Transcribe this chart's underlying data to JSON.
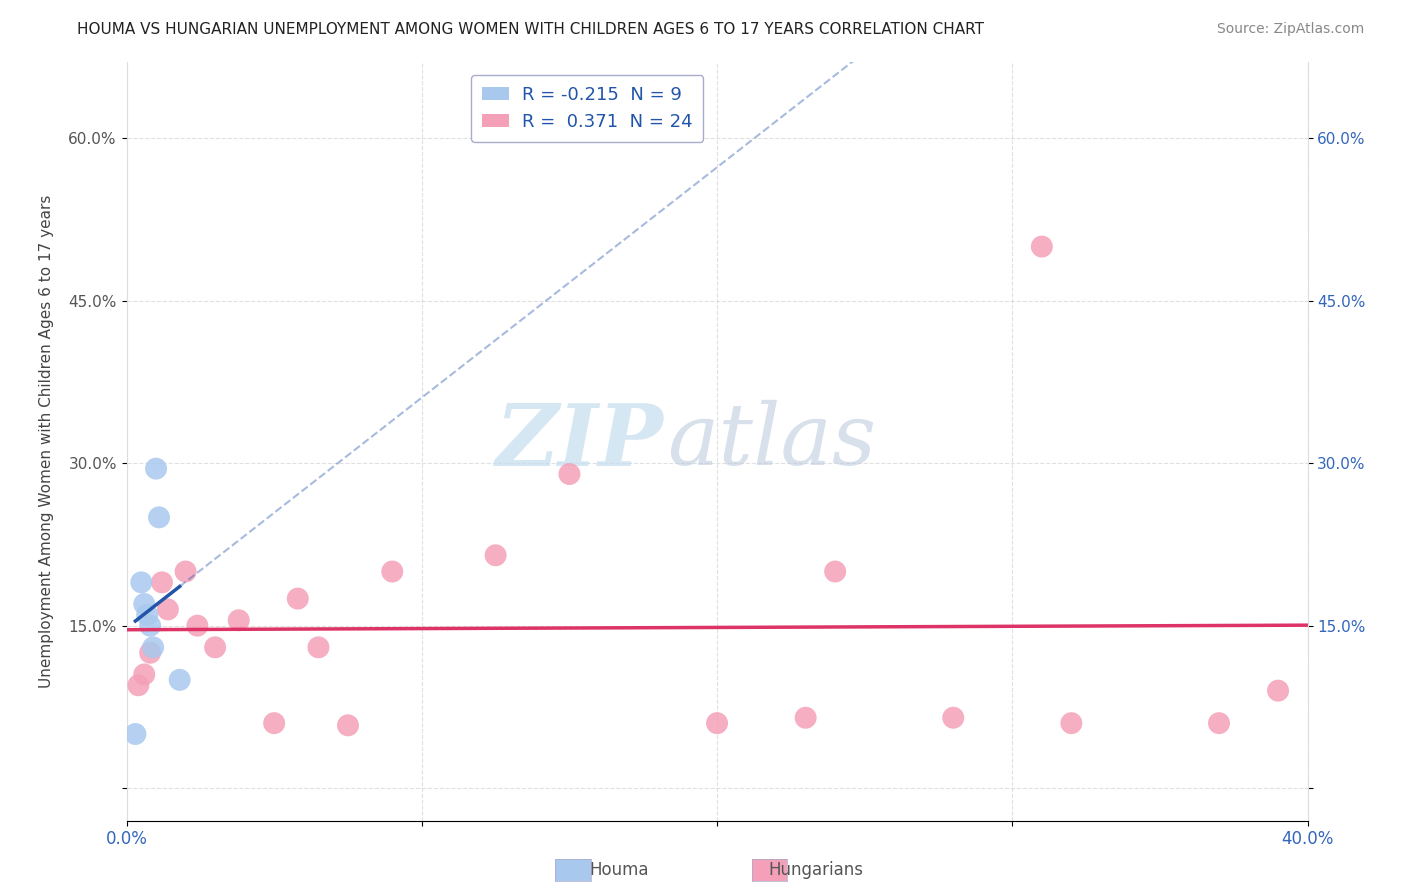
{
  "title": "HOUMA VS HUNGARIAN UNEMPLOYMENT AMONG WOMEN WITH CHILDREN AGES 6 TO 17 YEARS CORRELATION CHART",
  "source": "Source: ZipAtlas.com",
  "ylabel": "Unemployment Among Women with Children Ages 6 to 17 years",
  "xlim": [
    0.0,
    0.4
  ],
  "ylim": [
    -0.03,
    0.67
  ],
  "yticks": [
    0.0,
    0.15,
    0.3,
    0.45,
    0.6
  ],
  "ytick_labels_left": [
    "",
    "15.0%",
    "30.0%",
    "45.0%",
    "60.0%"
  ],
  "ytick_labels_right": [
    "",
    "15.0%",
    "30.0%",
    "45.0%",
    "60.0%"
  ],
  "houma_R": -0.215,
  "houma_N": 9,
  "hungarian_R": 0.371,
  "hungarian_N": 24,
  "houma_color": "#a8c8ee",
  "hungarian_color": "#f4a0b8",
  "houma_line_color": "#2255aa",
  "hungarian_line_color": "#dd3366",
  "houma_scatter_x": [
    0.003,
    0.005,
    0.006,
    0.007,
    0.008,
    0.009,
    0.01,
    0.011,
    0.018
  ],
  "houma_scatter_y": [
    0.05,
    0.19,
    0.17,
    0.16,
    0.15,
    0.13,
    0.295,
    0.25,
    0.1
  ],
  "hungarian_scatter_x": [
    0.004,
    0.006,
    0.008,
    0.012,
    0.014,
    0.02,
    0.024,
    0.03,
    0.038,
    0.05,
    0.058,
    0.065,
    0.075,
    0.09,
    0.125,
    0.15,
    0.2,
    0.23,
    0.24,
    0.28,
    0.31,
    0.32,
    0.37,
    0.39
  ],
  "hungarian_scatter_y": [
    0.095,
    0.105,
    0.125,
    0.19,
    0.165,
    0.2,
    0.15,
    0.13,
    0.155,
    0.06,
    0.175,
    0.13,
    0.058,
    0.2,
    0.215,
    0.29,
    0.06,
    0.065,
    0.2,
    0.065,
    0.5,
    0.06,
    0.06,
    0.09
  ],
  "background_color": "#ffffff",
  "grid_color": "#cccccc",
  "houma_label": "Houma",
  "hungarian_label": "Hungarians"
}
